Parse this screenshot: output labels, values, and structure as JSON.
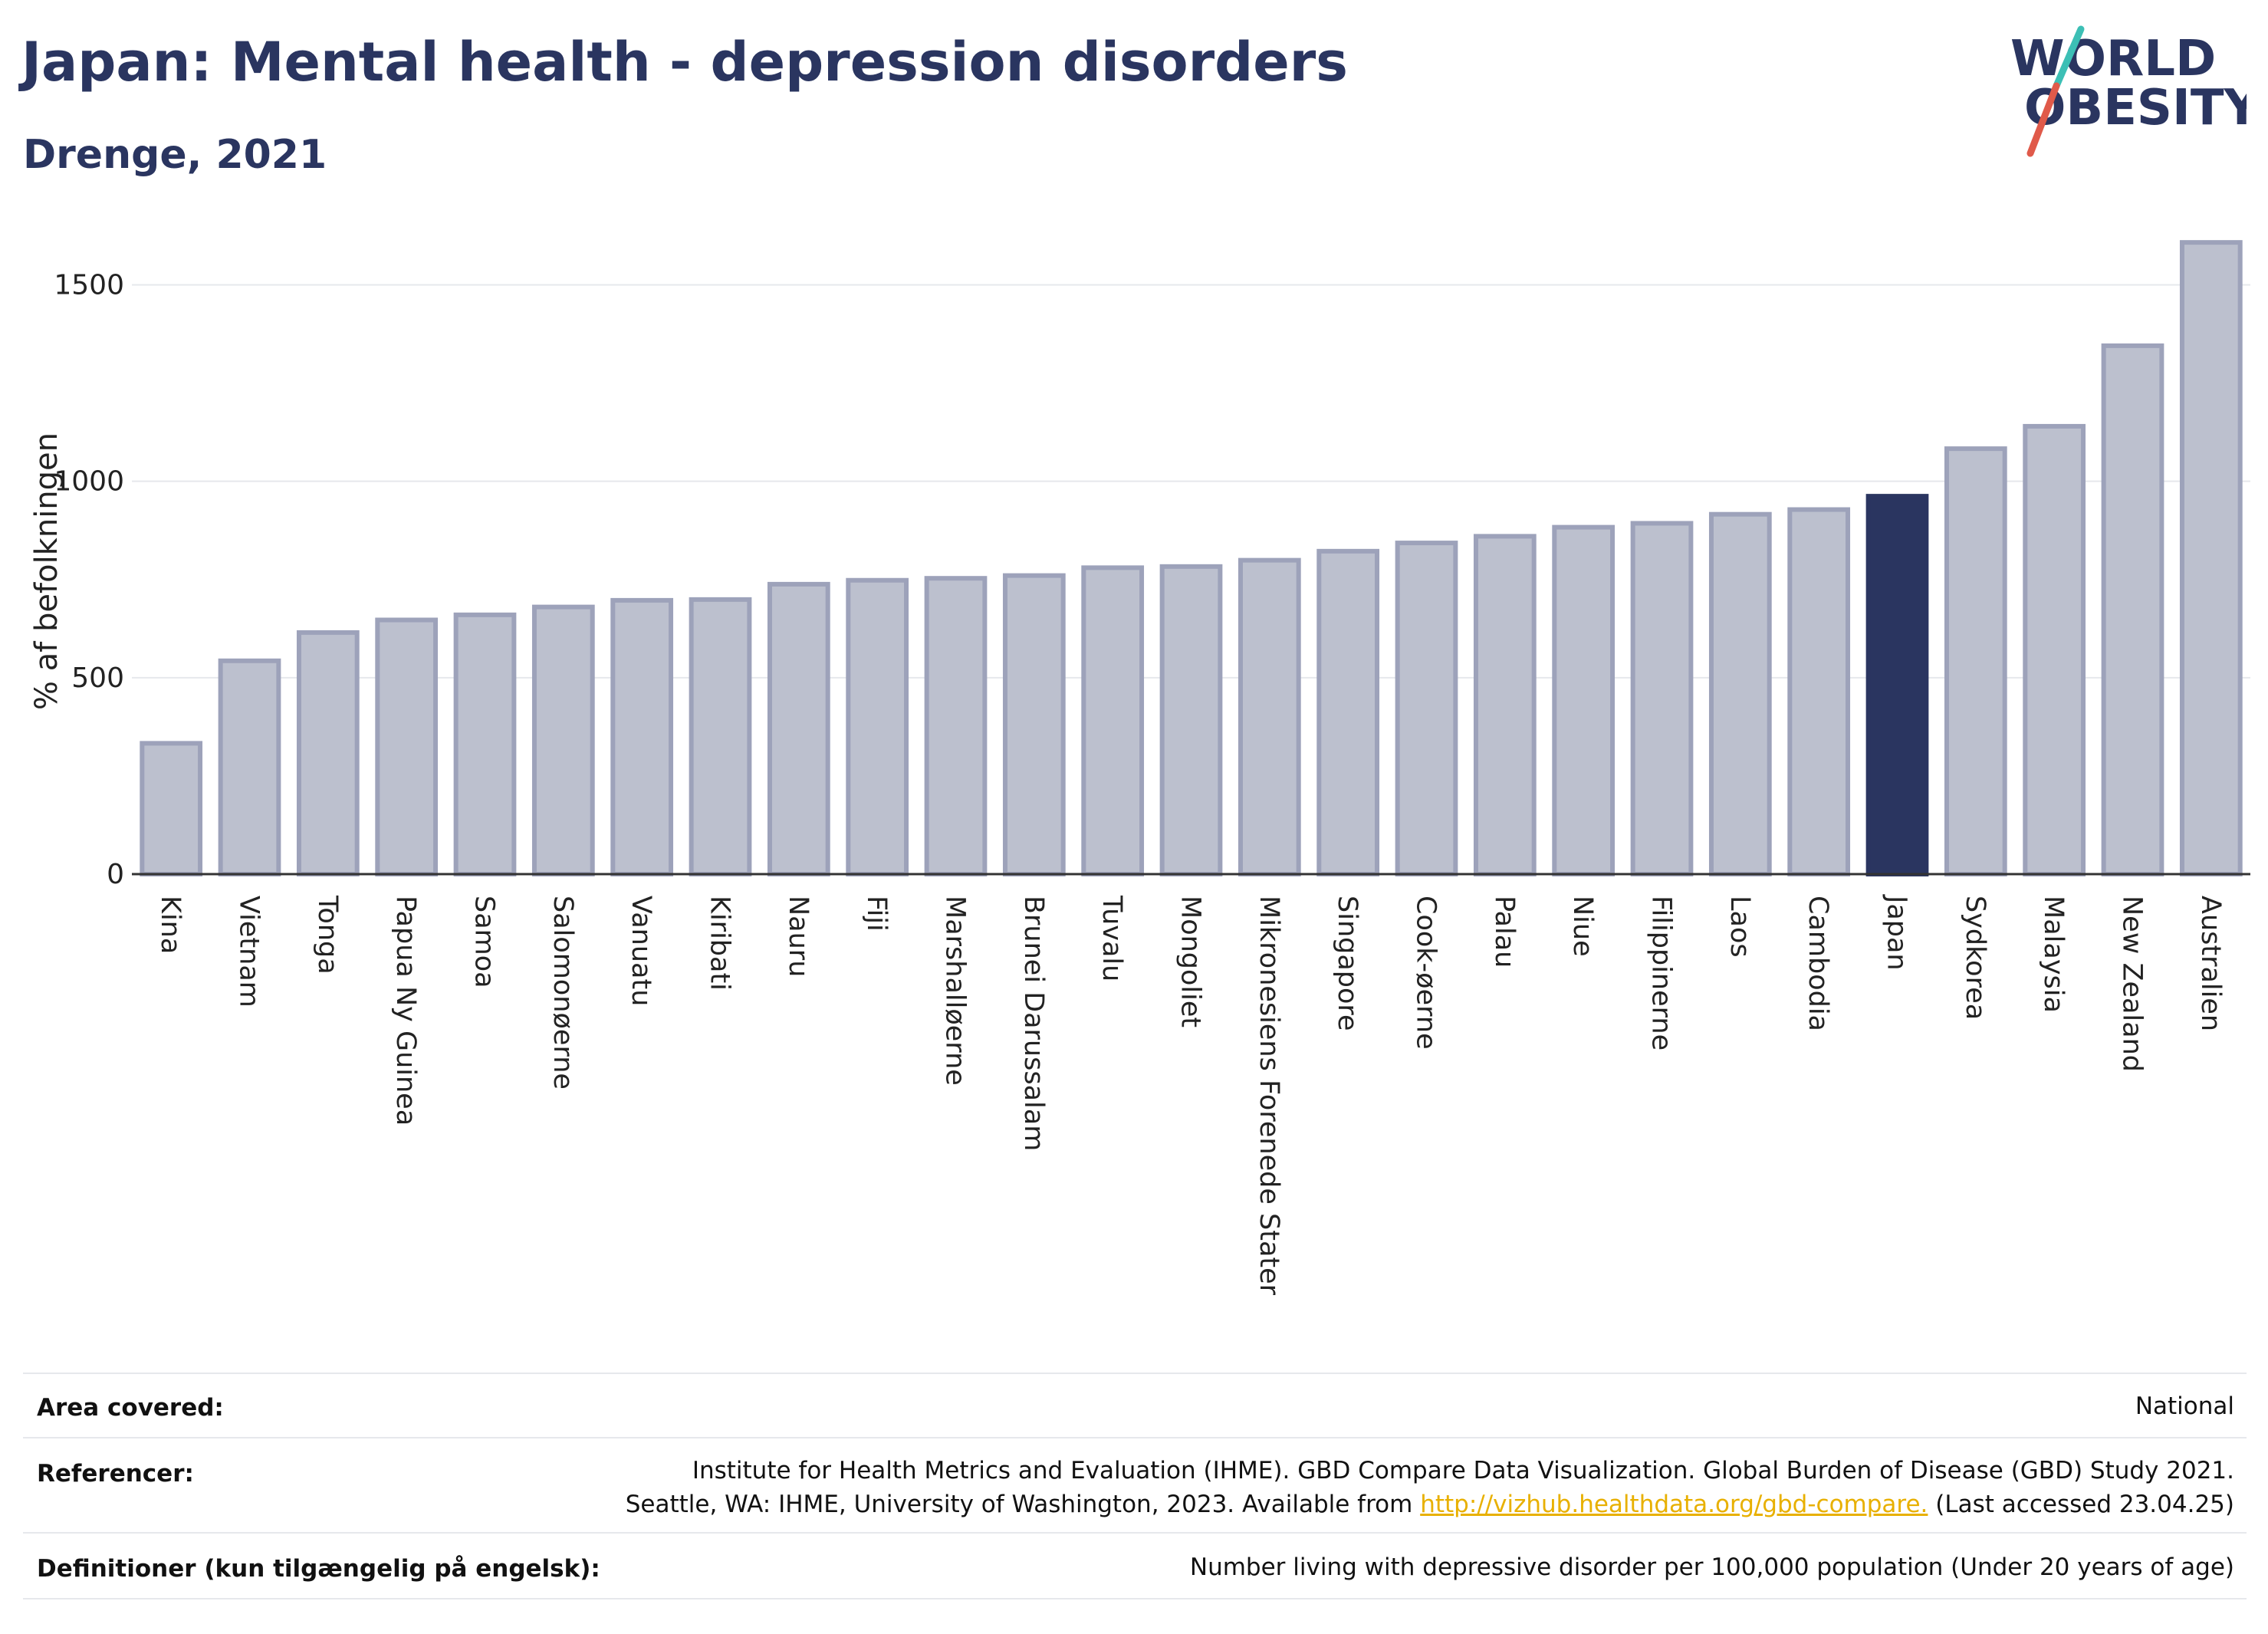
{
  "title": "Japan: Mental health - depression disorders",
  "subtitle": "Drenge, 2021",
  "logo": {
    "line1": "WORLD",
    "line2": "OBESITY",
    "accent_teal": "#3cbfb5",
    "accent_red": "#e05a4a"
  },
  "colors": {
    "bar": "#bcc0ce",
    "bar_border": "#9da2ba",
    "highlight": "#2a3560",
    "grid": "#e6e8ec",
    "axis": "#333333"
  },
  "chart_data": {
    "type": "bar",
    "ylabel": "% af befolkningen",
    "yticks": [
      0,
      500,
      1000,
      1500
    ],
    "ylim": [
      0,
      1620
    ],
    "highlight": "Japan",
    "categories": [
      "Kina",
      "Vietnam",
      "Tonga",
      "Papua Ny Guinea",
      "Samoa",
      "Salomonøerne",
      "Vanuatu",
      "Kiribati",
      "Nauru",
      "Fiji",
      "Marshalløerne",
      "Brunei Darussalam",
      "Tuvalu",
      "Mongoliet",
      "Mikronesiens Forenede Stater",
      "Singapore",
      "Cook-øerne",
      "Palau",
      "Niue",
      "Filippinerne",
      "Laos",
      "Cambodia",
      "Japan",
      "Sydkorea",
      "Malaysia",
      "New Zealand",
      "Australien"
    ],
    "values": [
      333,
      543,
      615,
      647,
      660,
      680,
      697,
      699,
      738,
      748,
      753,
      760,
      780,
      783,
      799,
      822,
      843,
      860,
      883,
      893,
      916,
      928,
      962,
      1083,
      1140,
      1345,
      1608
    ]
  },
  "info": {
    "area": {
      "label": "Area covered:",
      "value": "National"
    },
    "refs": {
      "label": "Referencer:",
      "line1": "Institute for Health Metrics and Evaluation (IHME). GBD Compare Data Visualization. Global Burden of Disease (GBD) Study 2021.",
      "line2_pre": "Seattle, WA: IHME, University of Washington, 2023. Available from ",
      "link": "http://vizhub.healthdata.org/gbd-compare.",
      "line2_post": " (Last accessed 23.04.25)"
    },
    "defs": {
      "label": "Definitioner (kun tilgængelig på engelsk):",
      "value": "Number living with depressive disorder per 100,000 population (Under 20 years of age)"
    }
  }
}
